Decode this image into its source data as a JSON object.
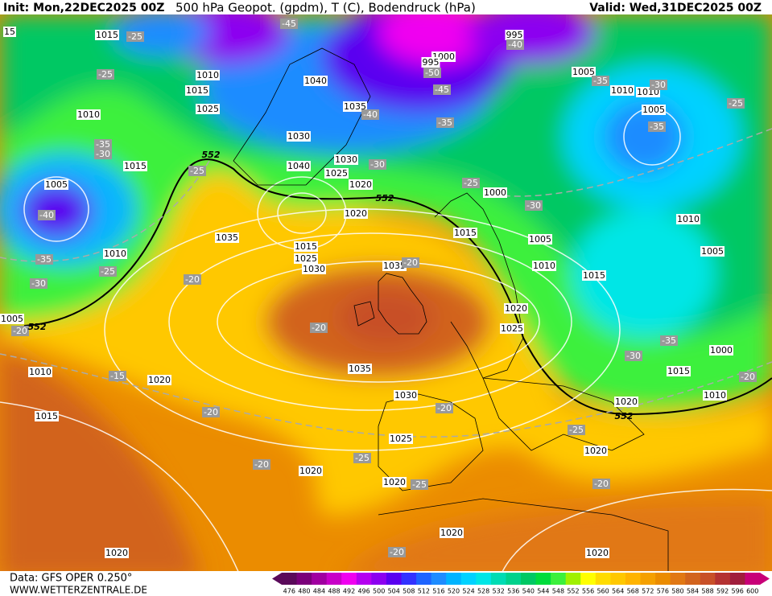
{
  "header": {
    "init": "Init: Mon,22DEC2025 00Z",
    "title": "500 hPa Geopot. (gpdm), T (C), Bodendruck (hPa)",
    "valid": "Valid: Wed,31DEC2025 00Z"
  },
  "footer": {
    "data": "Data: GFS OPER 0.250°",
    "site": "WWW.WETTERZENTRALE.DE"
  },
  "colorbar": {
    "levels": [
      "476",
      "480",
      "484",
      "488",
      "492",
      "496",
      "500",
      "504",
      "508",
      "512",
      "516",
      "520",
      "524",
      "528",
      "532",
      "536",
      "540",
      "544",
      "548",
      "552",
      "556",
      "560",
      "564",
      "568",
      "572",
      "576",
      "580",
      "584",
      "588",
      "592",
      "596",
      "600"
    ],
    "colors": [
      "#5a0a5a",
      "#7a007a",
      "#a000a0",
      "#c800c8",
      "#f000f0",
      "#b400f0",
      "#8c00f0",
      "#5a00f0",
      "#3232ff",
      "#1e64ff",
      "#1e8cff",
      "#00b4ff",
      "#00d2ff",
      "#00e6e6",
      "#00dcb4",
      "#00d28c",
      "#00c864",
      "#00dc3c",
      "#3cf03c",
      "#a0f000",
      "#ffff00",
      "#ffdc00",
      "#ffc800",
      "#ffb400",
      "#f5a000",
      "#eb8c00",
      "#e17814",
      "#d2641e",
      "#c85028",
      "#b43232",
      "#a01e3c",
      "#c80078"
    ]
  },
  "map": {
    "pressure_labels": [
      "1015",
      "1010",
      "1015",
      "1025",
      "1010",
      "1015",
      "1005",
      "1010",
      "1035",
      "1040",
      "1035",
      "1030",
      "1040",
      "1030",
      "1025",
      "1020",
      "1020",
      "1015",
      "1025",
      "1030",
      "1035",
      "995",
      "1000",
      "995",
      "1005",
      "1010",
      "1010",
      "1005",
      "1000",
      "1015",
      "1005",
      "1010",
      "1015",
      "1020",
      "1025",
      "1010",
      "1005",
      "1000",
      "1015",
      "1010",
      "1020",
      "1035",
      "1030",
      "1010",
      "1020",
      "1015",
      "1025",
      "1020",
      "1020",
      "1020",
      "1020",
      "1020",
      "1020",
      "1005",
      "15"
    ],
    "temperature_labels": [
      "-25",
      "-25",
      "-45",
      "-40",
      "-50",
      "-45",
      "-40",
      "-35",
      "-35",
      "-30",
      "-25",
      "-35",
      "-35",
      "-30",
      "-25",
      "-30",
      "-25",
      "-30",
      "-40",
      "-35",
      "-25",
      "-30",
      "-20",
      "-20",
      "-20",
      "-20",
      "-15",
      "-20",
      "-20",
      "-25",
      "-20",
      "-25",
      "-25",
      "-20",
      "-20",
      "-30",
      "-35",
      "-20"
    ],
    "height_labels": [
      "552",
      "552",
      "552",
      "552"
    ]
  }
}
